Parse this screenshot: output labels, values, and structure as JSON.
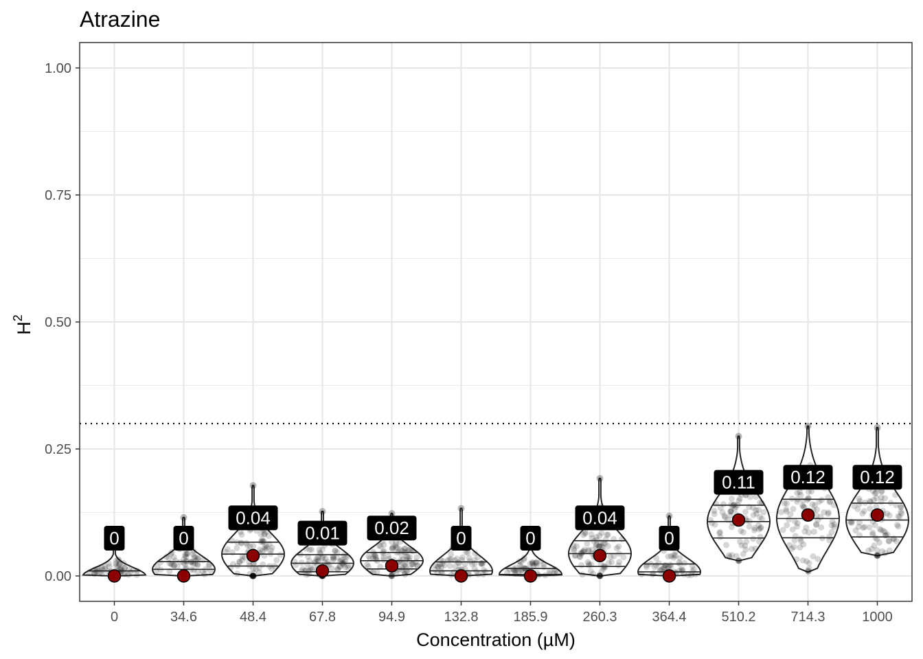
{
  "chart_data": {
    "type": "violin",
    "title": "Atrazine",
    "xlabel": "Concentration (µM)",
    "ylabel": "H",
    "ylabel_superscript": "2",
    "categories": [
      "0",
      "34.6",
      "48.4",
      "67.8",
      "94.9",
      "132.8",
      "185.9",
      "260.3",
      "364.4",
      "510.2",
      "714.3",
      "1000"
    ],
    "point_estimates": [
      0,
      0,
      0.04,
      0.01,
      0.02,
      0,
      0,
      0.04,
      0,
      0.11,
      0.12,
      0.12
    ],
    "value_labels": [
      "0",
      "0",
      "0.04",
      "0.01",
      "0.02",
      "0",
      "0",
      "0.04",
      "0",
      "0.11",
      "0.12",
      "0.12"
    ],
    "distribution_max": [
      0.075,
      0.115,
      0.178,
      0.127,
      0.123,
      0.133,
      0.088,
      0.192,
      0.118,
      0.275,
      0.295,
      0.292
    ],
    "distribution_min": [
      0,
      0,
      0,
      0,
      0,
      0,
      0,
      0,
      0,
      0.03,
      0.008,
      0.04
    ],
    "distribution_median": [
      0.0,
      0.013,
      0.043,
      0.025,
      0.03,
      0.01,
      0.003,
      0.044,
      0.008,
      0.107,
      0.113,
      0.11
    ],
    "reference_line": 0.3,
    "y_ticks": [
      "0.00",
      "0.25",
      "0.50",
      "0.75",
      "1.00"
    ],
    "ylim": [
      -0.05,
      1.05
    ],
    "grid": true,
    "colors": {
      "point_fill": "#8b0000",
      "label_background": "#000000",
      "label_text": "#ffffff",
      "violin_fill": "#4d4d4d",
      "outline": "#222222"
    }
  }
}
